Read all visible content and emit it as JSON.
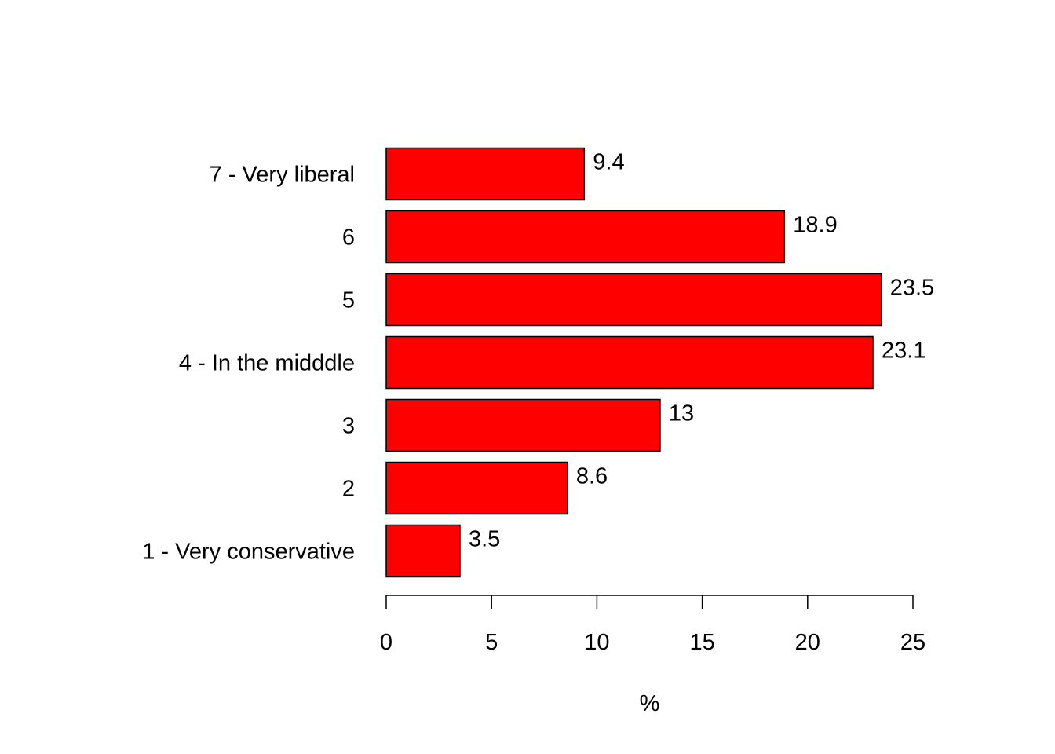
{
  "chart_data": {
    "type": "bar",
    "orientation": "horizontal",
    "title": "",
    "xlabel": "%",
    "ylabel": "",
    "categories": [
      "1 - Very conservative",
      "2",
      "3",
      "4 - In the midddle",
      "5",
      "6",
      "7 - Very liberal"
    ],
    "values": [
      3.5,
      8.6,
      13,
      23.1,
      23.5,
      18.9,
      9.4
    ],
    "value_labels": [
      "3.5",
      "8.6",
      "13",
      "23.1",
      "23.5",
      "18.9",
      "9.4"
    ],
    "xlim": [
      0,
      25
    ],
    "xticks": [
      0,
      5,
      10,
      15,
      20,
      25
    ],
    "xtick_labels": [
      "0",
      "5",
      "10",
      "15",
      "20",
      "25"
    ],
    "bar_color": "#ff0000",
    "edge_color": "#000000",
    "grid": false,
    "legend": "none"
  }
}
